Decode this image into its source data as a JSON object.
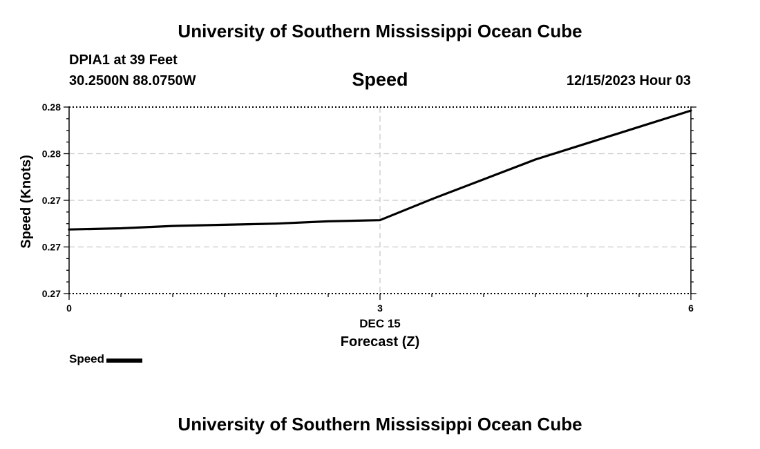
{
  "header": {
    "title": "University of Southern Mississippi Ocean Cube",
    "station": "DPIA1 at 39 Feet",
    "coordinates": "30.2500N  88.0750W",
    "chart_title": "Speed",
    "datetime": "12/15/2023 Hour 03"
  },
  "footer": {
    "title": "University of Southern Mississippi Ocean Cube"
  },
  "legend": {
    "label": "Speed",
    "color": "#000000"
  },
  "chart_data": {
    "type": "line",
    "title": "Speed",
    "xlabel": "Forecast (Z)",
    "x_sublabel": "DEC 15",
    "ylabel": "Speed (Knots)",
    "xlim": [
      0,
      6
    ],
    "ylim": [
      0.266,
      0.282
    ],
    "x_ticks": [
      {
        "value": 0,
        "label": "0"
      },
      {
        "value": 3,
        "label": "3"
      },
      {
        "value": 6,
        "label": "6"
      }
    ],
    "y_ticks": [
      {
        "value": 0.266,
        "label": "0.27"
      },
      {
        "value": 0.27,
        "label": "0.27"
      },
      {
        "value": 0.274,
        "label": "0.27"
      },
      {
        "value": 0.278,
        "label": "0.28"
      },
      {
        "value": 0.282,
        "label": "0.28"
      }
    ],
    "grid": true,
    "series": [
      {
        "name": "Speed",
        "color": "#000000",
        "x": [
          0,
          0.5,
          1,
          1.5,
          2,
          2.5,
          3,
          3.5,
          4,
          4.5,
          5,
          5.5,
          6
        ],
        "values": [
          0.2715,
          0.2716,
          0.2718,
          0.2719,
          0.272,
          0.2722,
          0.2723,
          0.2741,
          0.2758,
          0.2775,
          0.2789,
          0.2803,
          0.2817
        ]
      }
    ]
  }
}
